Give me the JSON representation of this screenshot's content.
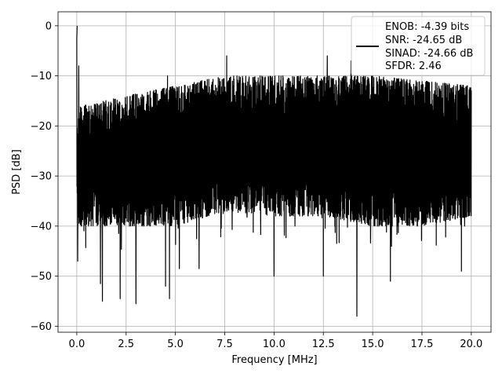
{
  "chart_data": {
    "type": "line",
    "title": "",
    "xlabel": "Frequency [MHz]",
    "ylabel": "PSD [dB]",
    "xlim": [
      -0.95,
      21.0
    ],
    "ylim": [
      -61.2,
      2.8
    ],
    "xticks": [
      0.0,
      2.5,
      5.0,
      7.5,
      10.0,
      12.5,
      15.0,
      17.5,
      20.0
    ],
    "xtick_labels": [
      "0.0",
      "2.5",
      "5.0",
      "7.5",
      "10.0",
      "12.5",
      "15.0",
      "17.5",
      "20.0"
    ],
    "yticks": [
      0,
      -10,
      -20,
      -30,
      -40,
      -50,
      -60
    ],
    "ytick_labels": [
      "0",
      "−10",
      "−20",
      "−30",
      "−40",
      "−50",
      "−60"
    ],
    "grid": true,
    "legend_position": "top-right",
    "legend_entries": [
      "ENOB: -4.39 bits",
      "SNR: -24.65 dB",
      "SINAD: -24.66 dB",
      "SFDR: 2.46"
    ],
    "series": [
      {
        "color": "#000000",
        "description": "dense noisy PSD trace from 0 to 20 MHz",
        "peak": {
          "x": 0.02,
          "y": 0.0
        },
        "noise_band_upper": [
          {
            "x": 0.3,
            "y": -16
          },
          {
            "x": 2.5,
            "y": -14
          },
          {
            "x": 5.0,
            "y": -12
          },
          {
            "x": 7.5,
            "y": -10
          },
          {
            "x": 10.0,
            "y": -10
          },
          {
            "x": 12.5,
            "y": -10
          },
          {
            "x": 15.0,
            "y": -10
          },
          {
            "x": 17.5,
            "y": -11
          },
          {
            "x": 20.0,
            "y": -12
          }
        ],
        "noise_band_lower": [
          {
            "x": 0.3,
            "y": -40
          },
          {
            "x": 2.5,
            "y": -40
          },
          {
            "x": 5.0,
            "y": -40
          },
          {
            "x": 7.5,
            "y": -37
          },
          {
            "x": 10.0,
            "y": -38
          },
          {
            "x": 12.5,
            "y": -38
          },
          {
            "x": 15.0,
            "y": -40
          },
          {
            "x": 17.5,
            "y": -40
          },
          {
            "x": 20.0,
            "y": -38
          }
        ],
        "notable_dips": [
          {
            "x": 0.05,
            "y": -47
          },
          {
            "x": 1.2,
            "y": -51.5
          },
          {
            "x": 1.3,
            "y": -55
          },
          {
            "x": 2.2,
            "y": -54.5
          },
          {
            "x": 3.0,
            "y": -55.5
          },
          {
            "x": 4.5,
            "y": -52
          },
          {
            "x": 4.7,
            "y": -54.5
          },
          {
            "x": 5.2,
            "y": -48.5
          },
          {
            "x": 6.2,
            "y": -48.5
          },
          {
            "x": 10.0,
            "y": -50
          },
          {
            "x": 12.5,
            "y": -50
          },
          {
            "x": 14.2,
            "y": -58
          },
          {
            "x": 15.9,
            "y": -51
          },
          {
            "x": 19.5,
            "y": -49
          }
        ],
        "notable_peaks": [
          {
            "x": 0.0,
            "y": -2.5
          },
          {
            "x": 0.1,
            "y": -8
          },
          {
            "x": 4.6,
            "y": -10
          },
          {
            "x": 7.6,
            "y": -6
          },
          {
            "x": 12.7,
            "y": -6
          },
          {
            "x": 13.9,
            "y": -7
          }
        ]
      }
    ]
  }
}
